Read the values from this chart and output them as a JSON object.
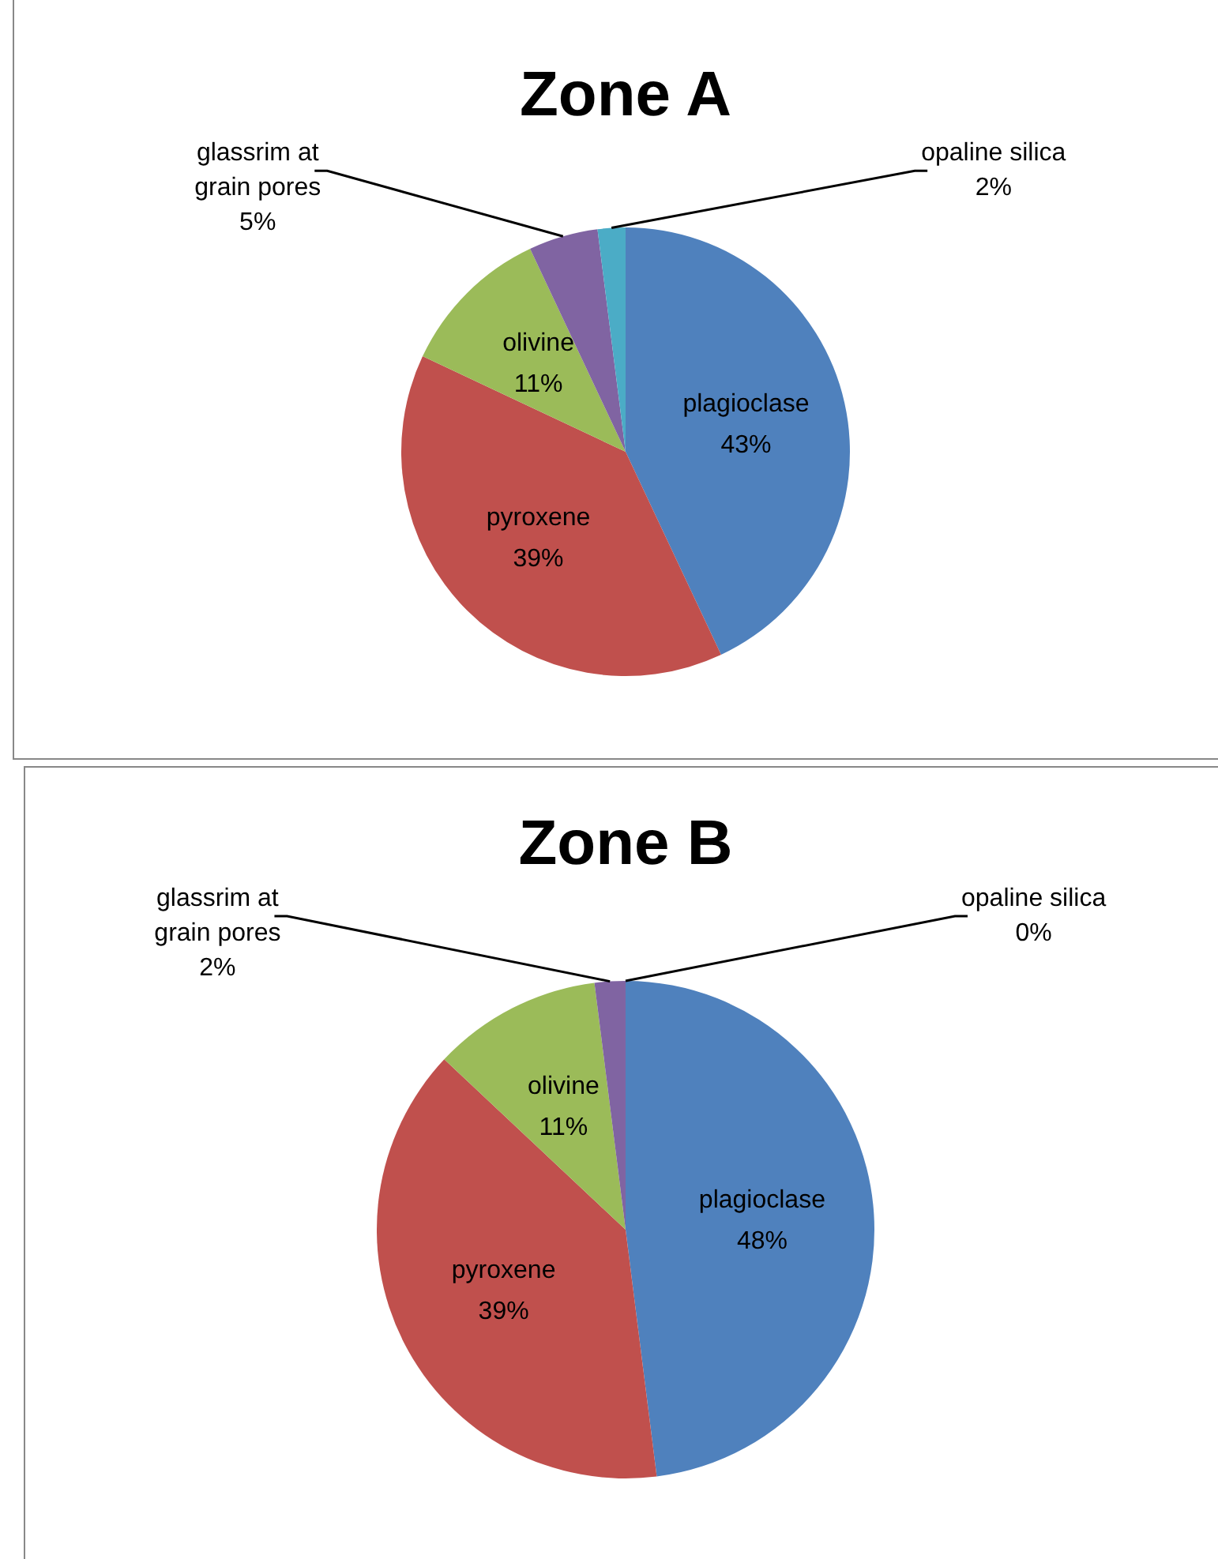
{
  "chart_data": [
    {
      "type": "pie",
      "title": "Zone A",
      "categories": [
        "plagioclase",
        "pyroxene",
        "olivine",
        "glassrim at grain pores",
        "opaline silica"
      ],
      "values": [
        43,
        39,
        11,
        5,
        2
      ],
      "value_labels": [
        "43%",
        "39%",
        "11%",
        "5%",
        "2%"
      ],
      "colors": [
        "#4f81bd",
        "#c0504d",
        "#9bbb59",
        "#8064a2",
        "#4bacc6"
      ],
      "legend": false
    },
    {
      "type": "pie",
      "title": "Zone B",
      "categories": [
        "plagioclase",
        "pyroxene",
        "olivine",
        "glassrim at grain pores",
        "opaline silica"
      ],
      "values": [
        48,
        39,
        11,
        2,
        0
      ],
      "value_labels": [
        "48%",
        "39%",
        "11%",
        "2%",
        "0%"
      ],
      "colors": [
        "#4f81bd",
        "#c0504d",
        "#9bbb59",
        "#8064a2",
        "#4bacc6"
      ],
      "legend": false
    }
  ]
}
